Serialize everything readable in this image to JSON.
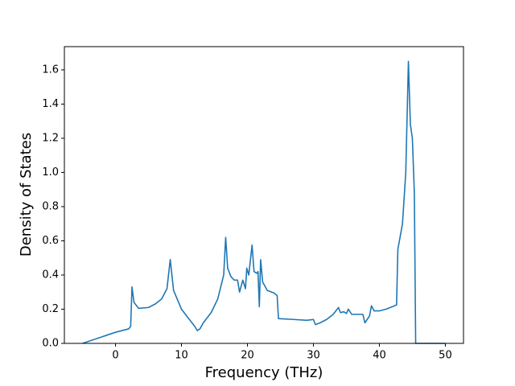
{
  "chart_data": {
    "type": "line",
    "x_label": "Frequency (THz)",
    "y_label": "Density of States",
    "x": [
      -5,
      0,
      2,
      2.3,
      2.5,
      2.8,
      3.5,
      5,
      6,
      7,
      7.8,
      8.3,
      8.8,
      10,
      11,
      12,
      12.4,
      12.8,
      13.3,
      14.5,
      15.5,
      16.4,
      16.7,
      17,
      17.5,
      18,
      18.5,
      18.8,
      19.3,
      19.7,
      19.9,
      20.2,
      20.7,
      21,
      21.4,
      21.6,
      21.8,
      22,
      22.3,
      23,
      24,
      24.5,
      24.7,
      27,
      29,
      30,
      30.3,
      31,
      32,
      33,
      33.8,
      34.1,
      34.6,
      35,
      35.3,
      35.8,
      37,
      37.5,
      37.8,
      38.5,
      38.8,
      39.2,
      40,
      41,
      42,
      42.6,
      42.8,
      43.5,
      44,
      44.4,
      44.7,
      45,
      45.3,
      45.5,
      50
    ],
    "values": [
      0,
      0.065,
      0.085,
      0.1,
      0.33,
      0.24,
      0.205,
      0.21,
      0.23,
      0.26,
      0.32,
      0.49,
      0.31,
      0.2,
      0.15,
      0.1,
      0.075,
      0.085,
      0.12,
      0.18,
      0.26,
      0.4,
      0.62,
      0.44,
      0.39,
      0.37,
      0.37,
      0.3,
      0.37,
      0.32,
      0.44,
      0.4,
      0.575,
      0.42,
      0.41,
      0.42,
      0.215,
      0.49,
      0.36,
      0.31,
      0.295,
      0.28,
      0.145,
      0.14,
      0.135,
      0.14,
      0.11,
      0.12,
      0.14,
      0.17,
      0.21,
      0.18,
      0.185,
      0.175,
      0.2,
      0.17,
      0.17,
      0.17,
      0.12,
      0.16,
      0.22,
      0.19,
      0.19,
      0.2,
      0.215,
      0.225,
      0.55,
      0.7,
      1.0,
      1.65,
      1.28,
      1.2,
      0.88,
      0,
      0
    ],
    "color": "#1f77b4",
    "xlim": [
      -7.75,
      52.75
    ],
    "xticks": [
      0,
      10,
      20,
      30,
      40,
      50
    ],
    "ylim": [
      0,
      1.736
    ],
    "yticks": [
      {
        "value": 0,
        "label": "0.0"
      },
      0.2,
      0.4,
      0.6,
      0.8,
      {
        "value": 1,
        "label": "1.0"
      },
      1.2,
      1.4,
      1.6
    ]
  }
}
